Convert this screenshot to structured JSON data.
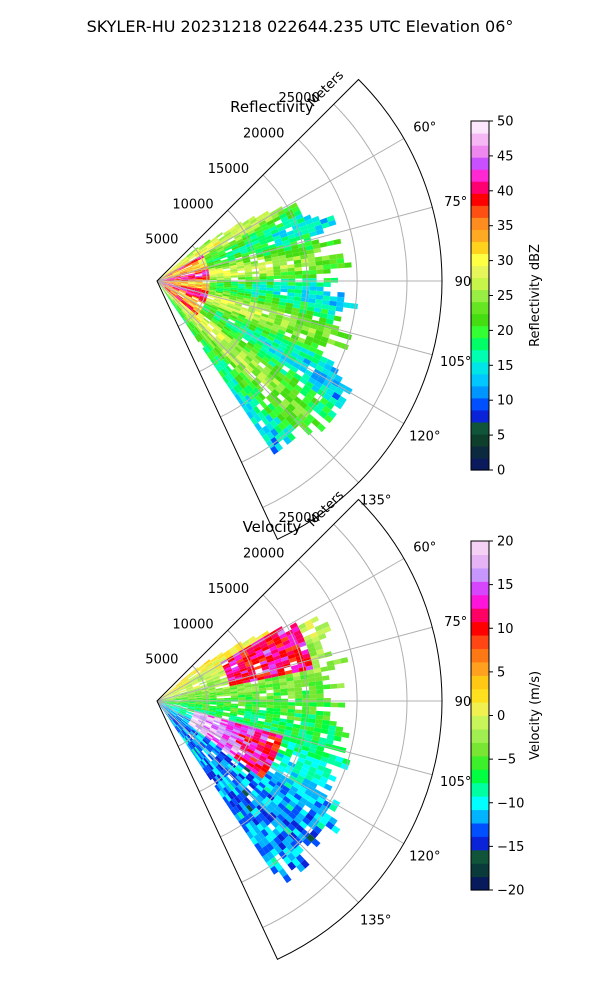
{
  "suptitle": "SKYLER-HU  20231218  022644.235 UTC Elevation 06°",
  "chart_data": [
    {
      "type": "heatmap",
      "projection": "polar-sector",
      "title": "Reflectivity",
      "radial_label": "Meters",
      "r_ticks": [
        5000,
        10000,
        15000,
        20000,
        25000
      ],
      "r_tick_labels": [
        "5000",
        "10000",
        "15000",
        "20000",
        "25000"
      ],
      "rlim": [
        0,
        28500
      ],
      "theta_ticks": [
        60,
        75,
        90,
        105,
        120,
        135
      ],
      "theta_tick_labels": [
        "60°",
        "75°",
        "90°",
        "105°",
        "120°",
        "135°"
      ],
      "theta_range_deg": [
        45,
        155
      ],
      "grid": true,
      "colorbar": {
        "label": "Reflectivity dBZ",
        "range": [
          0,
          50
        ],
        "ticks": [
          0,
          5,
          10,
          15,
          20,
          25,
          30,
          35,
          40,
          45,
          50
        ],
        "tick_labels": [
          "0",
          "5",
          "10",
          "15",
          "20",
          "25",
          "30",
          "35",
          "40",
          "45",
          "50"
        ]
      }
    },
    {
      "type": "heatmap",
      "projection": "polar-sector",
      "title": "Velocity",
      "radial_label": "Meters",
      "r_ticks": [
        5000,
        10000,
        15000,
        20000,
        25000
      ],
      "r_tick_labels": [
        "5000",
        "10000",
        "15000",
        "20000",
        "25000"
      ],
      "rlim": [
        0,
        28500
      ],
      "theta_ticks": [
        60,
        75,
        90,
        105,
        120,
        135
      ],
      "theta_tick_labels": [
        "60°",
        "75°",
        "90°",
        "105°",
        "120°",
        "135°"
      ],
      "theta_range_deg": [
        45,
        155
      ],
      "grid": true,
      "colorbar": {
        "label": "Velocity (m/s)",
        "range": [
          -20,
          20
        ],
        "ticks": [
          -20,
          -15,
          -10,
          -5,
          0,
          5,
          10,
          15,
          20
        ],
        "tick_labels": [
          "−20",
          "−15",
          "−10",
          "−5",
          "0",
          "5",
          "10",
          "15",
          "20"
        ]
      }
    }
  ],
  "colors": {
    "dbz_scale": [
      "#0a1a5c",
      "#0b2a40",
      "#0d3f2c",
      "#10553a",
      "#0a22d8",
      "#0050ff",
      "#0096ff",
      "#00c8ff",
      "#00e6e6",
      "#00ffb0",
      "#00ff66",
      "#33ff33",
      "#44dd11",
      "#66e622",
      "#99ee44",
      "#c8f54a",
      "#e6f55a",
      "#ffff44",
      "#ffd21e",
      "#ffaa22",
      "#ff8c1e",
      "#ff5014",
      "#ff0000",
      "#ff0070",
      "#ff28d2",
      "#c850ff",
      "#ee88ee",
      "#f5b8f5",
      "#fbe6fb"
    ],
    "vel_scale": [
      "#061a5c",
      "#0b3a3a",
      "#10553a",
      "#0a22d8",
      "#0050ff",
      "#00b4ff",
      "#00ffff",
      "#00ffa0",
      "#00ff40",
      "#3cf02a",
      "#78e632",
      "#a0ee50",
      "#c8f55a",
      "#f0f050",
      "#ffe01e",
      "#ffc814",
      "#ffa01e",
      "#ff7814",
      "#ff4614",
      "#ff0000",
      "#ff0064",
      "#ff14dc",
      "#d746ff",
      "#c896ff",
      "#e6b4f5",
      "#f5d2f5"
    ]
  }
}
